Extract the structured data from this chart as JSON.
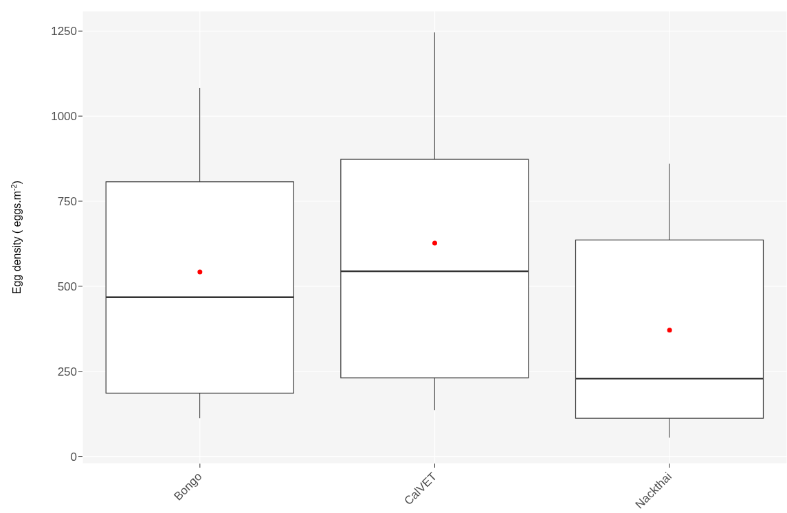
{
  "chart_data": {
    "type": "box",
    "ylabel": "Egg density ( eggs.m$^{-2}$)",
    "categories": [
      "Bongo",
      "CalVET",
      "Nackthai"
    ],
    "series": [
      {
        "type": "box",
        "color": "#333333",
        "boxes": [
          {
            "low": 112,
            "q1": 186,
            "median": 468,
            "q3": 807,
            "high": 1083
          },
          {
            "low": 136,
            "q1": 231,
            "median": 544,
            "q3": 873,
            "high": 1246
          },
          {
            "low": 55,
            "q1": 112,
            "median": 229,
            "q3": 636,
            "high": 860
          }
        ]
      },
      {
        "type": "scatter",
        "values": [
          542,
          627,
          371
        ],
        "color": "#ff0000"
      }
    ],
    "ylim": [
      -21,
      1309
    ],
    "yticks": [
      0,
      250,
      500,
      750,
      1000,
      1250
    ],
    "grid": true
  }
}
